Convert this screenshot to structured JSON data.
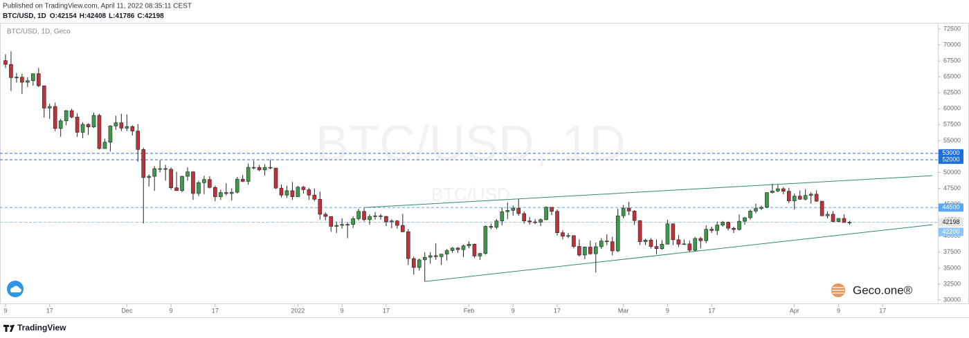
{
  "header": {
    "published": "Published on TradingView.com, April 11, 2022 08:35:11 CEST",
    "symbol_line": "BTC/USD, 1D",
    "ohlc_prefixes": [
      "O:",
      "H:",
      "L:",
      "C:"
    ]
  },
  "footer": {
    "brand": "TradingView"
  },
  "chart_data": {
    "type": "candlestick",
    "legend": "BTC/USD, 1D, Geco",
    "watermark": "BTC/USD, 1D",
    "watermark_sub": "BTC/USD",
    "logo": "Geco.one®",
    "up_color": "#3d9a4a",
    "down_color": "#c0313a",
    "xlim": [
      "2021-11-08",
      "2022-04-27"
    ],
    "ylim": [
      29350,
      73475
    ],
    "yticks": [
      30000,
      32500,
      35000,
      37500,
      40000,
      42500,
      45000,
      47500,
      50000,
      52500,
      55000,
      57500,
      60000,
      62500,
      65000,
      67500,
      70000,
      72500
    ],
    "xticks": [
      {
        "value": "2021-11-09",
        "label": "9"
      },
      {
        "value": "2021-11-17",
        "label": "17"
      },
      {
        "value": "2021-12-01",
        "label": "Dec"
      },
      {
        "value": "2021-12-09",
        "label": "9"
      },
      {
        "value": "2021-12-17",
        "label": "17"
      },
      {
        "value": "2022-01-01",
        "label": "2022"
      },
      {
        "value": "2022-01-09",
        "label": "9"
      },
      {
        "value": "2022-01-17",
        "label": "17"
      },
      {
        "value": "2022-02-01",
        "label": "Feb"
      },
      {
        "value": "2022-02-09",
        "label": "9"
      },
      {
        "value": "2022-02-17",
        "label": "17"
      },
      {
        "value": "2022-03-01",
        "label": "Mar"
      },
      {
        "value": "2022-03-09",
        "label": "9"
      },
      {
        "value": "2022-03-17",
        "label": "17"
      },
      {
        "value": "2022-04-01",
        "label": "Apr"
      },
      {
        "value": "2022-04-09",
        "label": "9"
      },
      {
        "value": "2022-04-17",
        "label": "17"
      }
    ],
    "levels": [
      {
        "value": 53000,
        "color": "#1e6fd9"
      },
      {
        "value": 52000,
        "color": "#1e6fd9"
      },
      {
        "value": 44500,
        "color": "#5aa9f0"
      },
      {
        "value": 42200,
        "color": "#8cc4f5"
      }
    ],
    "trendlines": [
      {
        "x": [
          "2022-01-24",
          "2022-04-26"
        ],
        "y": [
          32900,
          41800
        ],
        "color": "#2e8b6a"
      },
      {
        "x": [
          "2022-01-13",
          "2022-04-26"
        ],
        "y": [
          44500,
          49500
        ],
        "color": "#2e8b6a"
      }
    ],
    "x": [
      "2021-11-09",
      "2021-11-10",
      "2021-11-11",
      "2021-11-12",
      "2021-11-13",
      "2021-11-14",
      "2021-11-15",
      "2021-11-16",
      "2021-11-17",
      "2021-11-18",
      "2021-11-19",
      "2021-11-20",
      "2021-11-21",
      "2021-11-22",
      "2021-11-23",
      "2021-11-24",
      "2021-11-25",
      "2021-11-26",
      "2021-11-27",
      "2021-11-28",
      "2021-11-29",
      "2021-11-30",
      "2021-12-01",
      "2021-12-02",
      "2021-12-03",
      "2021-12-04",
      "2021-12-05",
      "2021-12-06",
      "2021-12-07",
      "2021-12-08",
      "2021-12-09",
      "2021-12-10",
      "2021-12-11",
      "2021-12-12",
      "2021-12-13",
      "2021-12-14",
      "2021-12-15",
      "2021-12-16",
      "2021-12-17",
      "2021-12-18",
      "2021-12-19",
      "2021-12-20",
      "2021-12-21",
      "2021-12-22",
      "2021-12-23",
      "2021-12-24",
      "2021-12-25",
      "2021-12-26",
      "2021-12-27",
      "2021-12-28",
      "2021-12-29",
      "2021-12-30",
      "2021-12-31",
      "2022-01-01",
      "2022-01-02",
      "2022-01-03",
      "2022-01-04",
      "2022-01-05",
      "2022-01-06",
      "2022-01-07",
      "2022-01-08",
      "2022-01-09",
      "2022-01-10",
      "2022-01-11",
      "2022-01-12",
      "2022-01-13",
      "2022-01-14",
      "2022-01-15",
      "2022-01-16",
      "2022-01-17",
      "2022-01-18",
      "2022-01-19",
      "2022-01-20",
      "2022-01-21",
      "2022-01-22",
      "2022-01-23",
      "2022-01-24",
      "2022-01-25",
      "2022-01-26",
      "2022-01-27",
      "2022-01-28",
      "2022-01-29",
      "2022-01-30",
      "2022-01-31",
      "2022-02-01",
      "2022-02-02",
      "2022-02-03",
      "2022-02-04",
      "2022-02-05",
      "2022-02-06",
      "2022-02-07",
      "2022-02-08",
      "2022-02-09",
      "2022-02-10",
      "2022-02-11",
      "2022-02-12",
      "2022-02-13",
      "2022-02-14",
      "2022-02-15",
      "2022-02-16",
      "2022-02-17",
      "2022-02-18",
      "2022-02-19",
      "2022-02-20",
      "2022-02-21",
      "2022-02-22",
      "2022-02-23",
      "2022-02-24",
      "2022-02-25",
      "2022-02-26",
      "2022-02-27",
      "2022-02-28",
      "2022-03-01",
      "2022-03-02",
      "2022-03-03",
      "2022-03-04",
      "2022-03-05",
      "2022-03-06",
      "2022-03-07",
      "2022-03-08",
      "2022-03-09",
      "2022-03-10",
      "2022-03-11",
      "2022-03-12",
      "2022-03-13",
      "2022-03-14",
      "2022-03-15",
      "2022-03-16",
      "2022-03-17",
      "2022-03-18",
      "2022-03-19",
      "2022-03-20",
      "2022-03-21",
      "2022-03-22",
      "2022-03-23",
      "2022-03-24",
      "2022-03-25",
      "2022-03-26",
      "2022-03-27",
      "2022-03-28",
      "2022-03-29",
      "2022-03-30",
      "2022-03-31",
      "2022-04-01",
      "2022-04-02",
      "2022-04-03",
      "2022-04-04",
      "2022-04-05",
      "2022-04-06",
      "2022-04-07",
      "2022-04-08",
      "2022-04-09",
      "2022-04-10",
      "2022-04-11"
    ],
    "ohlc": [
      [
        67550,
        68530,
        66380,
        66950
      ],
      [
        66950,
        69000,
        62800,
        64880
      ],
      [
        64880,
        65600,
        64100,
        64950
      ],
      [
        64950,
        65500,
        62300,
        64150
      ],
      [
        64150,
        64950,
        63400,
        64400
      ],
      [
        64400,
        65500,
        63600,
        65500
      ],
      [
        65500,
        66400,
        63400,
        63600
      ],
      [
        63600,
        63600,
        58600,
        60100
      ],
      [
        60100,
        60800,
        58400,
        60350
      ],
      [
        60350,
        60950,
        56500,
        56900
      ],
      [
        56900,
        58400,
        55600,
        58100
      ],
      [
        58100,
        59800,
        57400,
        59700
      ],
      [
        59700,
        60000,
        58500,
        58700
      ],
      [
        58700,
        59300,
        55600,
        56300
      ],
      [
        56300,
        57900,
        55400,
        57550
      ],
      [
        57550,
        57700,
        55900,
        57150
      ],
      [
        57150,
        59400,
        57000,
        58950
      ],
      [
        58950,
        59200,
        53600,
        53750
      ],
      [
        53750,
        55300,
        53700,
        54750
      ],
      [
        54750,
        57400,
        53300,
        57300
      ],
      [
        57300,
        58900,
        56700,
        57800
      ],
      [
        57800,
        59200,
        56500,
        56950
      ],
      [
        56950,
        59100,
        56500,
        57200
      ],
      [
        57200,
        57400,
        55800,
        56500
      ],
      [
        56500,
        57600,
        51700,
        53600
      ],
      [
        53600,
        53900,
        42000,
        49200
      ],
      [
        49200,
        49700,
        47800,
        49400
      ],
      [
        49400,
        51000,
        47100,
        50600
      ],
      [
        50600,
        51900,
        50000,
        50600
      ],
      [
        50600,
        51200,
        48700,
        50500
      ],
      [
        50500,
        50800,
        47300,
        47600
      ],
      [
        47600,
        50100,
        47300,
        47150
      ],
      [
        47150,
        49500,
        46900,
        49400
      ],
      [
        49400,
        50800,
        48700,
        50100
      ],
      [
        50100,
        50200,
        45700,
        46700
      ],
      [
        46700,
        48700,
        46300,
        48400
      ],
      [
        48400,
        49500,
        46600,
        48900
      ],
      [
        48900,
        49400,
        47500,
        47650
      ],
      [
        47650,
        47950,
        45500,
        46200
      ],
      [
        46200,
        47300,
        45700,
        46850
      ],
      [
        46850,
        48300,
        46400,
        46700
      ],
      [
        46700,
        47500,
        45600,
        46900
      ],
      [
        46900,
        49300,
        46700,
        48950
      ],
      [
        48950,
        49600,
        48500,
        48600
      ],
      [
        48600,
        51400,
        48100,
        50800
      ],
      [
        50800,
        51800,
        50500,
        50800
      ],
      [
        50800,
        51200,
        50200,
        50400
      ],
      [
        50400,
        51300,
        49500,
        50800
      ],
      [
        50800,
        52000,
        50500,
        50700
      ],
      [
        50700,
        50700,
        47400,
        47550
      ],
      [
        47550,
        48100,
        46100,
        46450
      ],
      [
        46450,
        47900,
        46000,
        47150
      ],
      [
        47150,
        48500,
        45700,
        46200
      ],
      [
        46200,
        47900,
        46200,
        47700
      ],
      [
        47700,
        47900,
        46700,
        47300
      ],
      [
        47300,
        47600,
        45700,
        46450
      ],
      [
        46450,
        47500,
        45500,
        45800
      ],
      [
        45800,
        47000,
        42600,
        43450
      ],
      [
        43450,
        43750,
        42500,
        43100
      ],
      [
        43100,
        43100,
        40700,
        41550
      ],
      [
        41550,
        42300,
        40500,
        41700
      ],
      [
        41700,
        42800,
        41200,
        41850
      ],
      [
        41850,
        42200,
        39700,
        41850
      ],
      [
        41850,
        43100,
        41300,
        42750
      ],
      [
        42750,
        44300,
        42450,
        43900
      ],
      [
        43900,
        44400,
        42300,
        42600
      ],
      [
        42600,
        43400,
        41800,
        43100
      ],
      [
        43100,
        43800,
        42600,
        43200
      ],
      [
        43200,
        43500,
        42600,
        43100
      ],
      [
        43100,
        43200,
        41600,
        42250
      ],
      [
        42250,
        42650,
        41250,
        42400
      ],
      [
        42400,
        42550,
        41200,
        41700
      ],
      [
        41700,
        43500,
        40600,
        40700
      ],
      [
        40700,
        41100,
        35500,
        36500
      ],
      [
        36500,
        36800,
        34000,
        35100
      ],
      [
        35100,
        36500,
        34600,
        36300
      ],
      [
        36300,
        37500,
        32900,
        36700
      ],
      [
        36700,
        37500,
        35700,
        36950
      ],
      [
        36950,
        38900,
        36300,
        36800
      ],
      [
        36800,
        37200,
        35500,
        37200
      ],
      [
        37200,
        38000,
        36200,
        37750
      ],
      [
        37750,
        38300,
        37400,
        38150
      ],
      [
        38150,
        38300,
        37400,
        37900
      ],
      [
        37900,
        38700,
        36700,
        38500
      ],
      [
        38500,
        39200,
        38100,
        38750
      ],
      [
        38750,
        38850,
        36600,
        36900
      ],
      [
        36900,
        37400,
        36300,
        37300
      ],
      [
        37300,
        41700,
        37100,
        41550
      ],
      [
        41550,
        42000,
        41100,
        41400
      ],
      [
        41400,
        42700,
        41100,
        42400
      ],
      [
        42400,
        44500,
        41700,
        43850
      ],
      [
        43850,
        45300,
        42700,
        44050
      ],
      [
        44050,
        44800,
        43200,
        44400
      ],
      [
        44400,
        45800,
        43200,
        43550
      ],
      [
        43550,
        43900,
        42000,
        42400
      ],
      [
        42400,
        43000,
        41800,
        42250
      ],
      [
        42250,
        42700,
        41900,
        42200
      ],
      [
        42200,
        42800,
        41600,
        42600
      ],
      [
        42600,
        44700,
        42500,
        44550
      ],
      [
        44550,
        44550,
        43300,
        43900
      ],
      [
        43900,
        44200,
        40100,
        40550
      ],
      [
        40550,
        40950,
        39500,
        40000
      ],
      [
        40000,
        40500,
        39700,
        40100
      ],
      [
        40100,
        40100,
        38100,
        38400
      ],
      [
        38400,
        39500,
        36800,
        37050
      ],
      [
        37050,
        38400,
        36400,
        38300
      ],
      [
        38300,
        39300,
        37100,
        37250
      ],
      [
        37250,
        39000,
        34300,
        38350
      ],
      [
        38350,
        39700,
        38000,
        39250
      ],
      [
        39250,
        40300,
        38600,
        39150
      ],
      [
        39150,
        39900,
        37000,
        37700
      ],
      [
        37700,
        44300,
        37500,
        43200
      ],
      [
        43200,
        44900,
        42800,
        44400
      ],
      [
        44400,
        45400,
        43300,
        43950
      ],
      [
        43950,
        44100,
        41800,
        42450
      ],
      [
        42450,
        42500,
        38600,
        39150
      ],
      [
        39150,
        39600,
        38600,
        39400
      ],
      [
        39400,
        39700,
        38100,
        38400
      ],
      [
        38400,
        39500,
        37200,
        38050
      ],
      [
        38050,
        39400,
        37900,
        38750
      ],
      [
        38750,
        42600,
        38700,
        41950
      ],
      [
        41950,
        42000,
        38600,
        39450
      ],
      [
        39450,
        40200,
        38300,
        38750
      ],
      [
        38750,
        39500,
        38700,
        38800
      ],
      [
        38800,
        39300,
        37600,
        37800
      ],
      [
        37800,
        39900,
        37600,
        39650
      ],
      [
        39650,
        39900,
        38100,
        39300
      ],
      [
        39300,
        41700,
        38900,
        41100
      ],
      [
        41100,
        41500,
        40500,
        40900
      ],
      [
        40900,
        42300,
        40200,
        41750
      ],
      [
        41750,
        42400,
        41500,
        42200
      ],
      [
        42200,
        42300,
        40900,
        41250
      ],
      [
        41250,
        41500,
        40500,
        41050
      ],
      [
        41050,
        43400,
        40900,
        42350
      ],
      [
        42350,
        43000,
        41800,
        42900
      ],
      [
        42900,
        44200,
        42600,
        43950
      ],
      [
        43950,
        45100,
        43600,
        44350
      ],
      [
        44350,
        44800,
        44100,
        44550
      ],
      [
        44550,
        46900,
        44400,
        46850
      ],
      [
        46850,
        48200,
        46700,
        47100
      ],
      [
        47100,
        48100,
        46900,
        47450
      ],
      [
        47450,
        47700,
        46600,
        47050
      ],
      [
        47050,
        47600,
        45200,
        45550
      ],
      [
        45550,
        46700,
        44200,
        46300
      ],
      [
        46300,
        47200,
        45700,
        45800
      ],
      [
        45800,
        47400,
        45600,
        46400
      ],
      [
        46400,
        46900,
        45100,
        46600
      ],
      [
        46600,
        47200,
        45400,
        45500
      ],
      [
        45500,
        45500,
        43200,
        43200
      ],
      [
        43200,
        43900,
        42800,
        43450
      ],
      [
        43450,
        43950,
        42200,
        42300
      ],
      [
        42300,
        42800,
        42200,
        42800
      ],
      [
        42800,
        43400,
        42200,
        42150
      ],
      [
        42154,
        42408,
        41786,
        42198
      ]
    ]
  }
}
